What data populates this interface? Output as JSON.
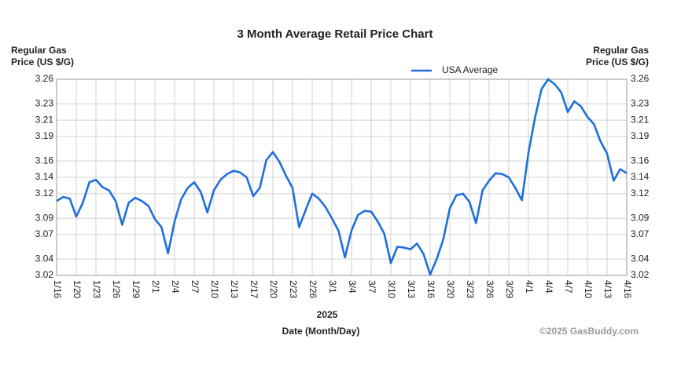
{
  "chart_data": {
    "type": "line",
    "title": "3 Month Average Retail Price Chart",
    "y_label": [
      "Regular Gas",
      "Price (US $/G)"
    ],
    "x_label": "Date (Month/Day)",
    "x_sublabel": "2025",
    "credit": "©2025 GasBuddy.com",
    "categories": [
      "1/16",
      null,
      null,
      "1/20",
      null,
      null,
      "1/23",
      null,
      null,
      "1/26",
      null,
      null,
      "1/29",
      null,
      null,
      "2/1",
      null,
      null,
      "2/4",
      null,
      null,
      "2/7",
      null,
      null,
      "2/10",
      null,
      null,
      "2/13",
      null,
      null,
      "2/17",
      null,
      null,
      "2/20",
      null,
      null,
      "2/23",
      null,
      null,
      "2/26",
      null,
      null,
      "3/1",
      null,
      null,
      "3/4",
      null,
      null,
      "3/7",
      null,
      null,
      "3/10",
      null,
      null,
      "3/13",
      null,
      null,
      "3/16",
      null,
      null,
      "3/20",
      null,
      null,
      "3/23",
      null,
      null,
      "3/26",
      null,
      null,
      "3/29",
      null,
      null,
      "4/1",
      null,
      null,
      "4/4",
      null,
      null,
      "4/7",
      null,
      null,
      "4/10",
      null,
      null,
      "4/13",
      null,
      null,
      "4/16"
    ],
    "series": [
      {
        "name": "USA Average",
        "color": "#1e6fdc",
        "values": [
          3.111,
          3.116,
          3.114,
          3.092,
          3.109,
          3.134,
          3.137,
          3.128,
          3.124,
          3.111,
          3.082,
          3.109,
          3.115,
          3.111,
          3.105,
          3.089,
          3.079,
          3.047,
          3.086,
          3.113,
          3.127,
          3.134,
          3.122,
          3.097,
          3.124,
          3.137,
          3.144,
          3.148,
          3.146,
          3.14,
          3.117,
          3.127,
          3.161,
          3.171,
          3.159,
          3.142,
          3.127,
          3.079,
          3.1,
          3.12,
          3.114,
          3.104,
          3.09,
          3.075,
          3.042,
          3.075,
          3.094,
          3.099,
          3.098,
          3.086,
          3.071,
          3.035,
          3.055,
          3.054,
          3.052,
          3.059,
          3.046,
          3.021,
          3.04,
          3.064,
          3.102,
          3.118,
          3.12,
          3.11,
          3.084,
          3.124,
          3.136,
          3.145,
          3.144,
          3.14,
          3.127,
          3.112,
          3.17,
          3.213,
          3.248,
          3.26,
          3.254,
          3.244,
          3.22,
          3.233,
          3.227,
          3.214,
          3.205,
          3.184,
          3.169,
          3.136,
          3.15,
          3.145
        ]
      }
    ],
    "ylim": [
      3.02,
      3.26
    ],
    "yticks": [
      3.02,
      3.04,
      3.07,
      3.09,
      3.12,
      3.14,
      3.16,
      3.19,
      3.21,
      3.23,
      3.26
    ],
    "grid": true,
    "legend": "top"
  }
}
